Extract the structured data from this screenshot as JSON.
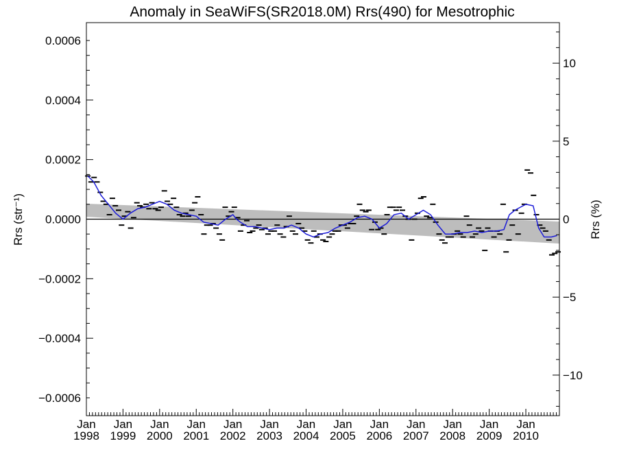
{
  "chart_data": {
    "type": "scatter",
    "title": "Anomaly in SeaWiFS(SR2018.0M) Rrs(490) for Mesotrophic",
    "ylabel_left": "Rrs (str⁻¹)",
    "ylabel_right": "Rrs (%)",
    "xlim": [
      1998.0,
      2010.9167
    ],
    "ylim": [
      -0.00066,
      0.00066
    ],
    "ylim_right_percent": [
      -12.6,
      12.6
    ],
    "grid": false,
    "y_ticks": [
      {
        "value": 0.0006,
        "label": "0.0006"
      },
      {
        "value": 0.0004,
        "label": "0.0004"
      },
      {
        "value": 0.0002,
        "label": "0.0002"
      },
      {
        "value": 0.0,
        "label": "0.0000"
      },
      {
        "value": -0.0002,
        "label": "−0.0002"
      },
      {
        "value": -0.0004,
        "label": "−0.0004"
      },
      {
        "value": -0.0006,
        "label": "−0.0006"
      }
    ],
    "y_ticks_right": [
      {
        "value": 10,
        "label": "10"
      },
      {
        "value": 5,
        "label": "5"
      },
      {
        "value": 0,
        "label": "0"
      },
      {
        "value": -5,
        "label": "−5"
      },
      {
        "value": -10,
        "label": "−10"
      }
    ],
    "x_ticks": [
      {
        "value": 1998,
        "month": "Jan",
        "year": "1998"
      },
      {
        "value": 1999,
        "month": "Jan",
        "year": "1999"
      },
      {
        "value": 2000,
        "month": "Jan",
        "year": "2000"
      },
      {
        "value": 2001,
        "month": "Jan",
        "year": "2001"
      },
      {
        "value": 2002,
        "month": "Jan",
        "year": "2002"
      },
      {
        "value": 2003,
        "month": "Jan",
        "year": "2003"
      },
      {
        "value": 2004,
        "month": "Jan",
        "year": "2004"
      },
      {
        "value": 2005,
        "month": "Jan",
        "year": "2005"
      },
      {
        "value": 2006,
        "month": "Jan",
        "year": "2006"
      },
      {
        "value": 2007,
        "month": "Jan",
        "year": "2007"
      },
      {
        "value": 2008,
        "month": "Jan",
        "year": "2008"
      },
      {
        "value": 2009,
        "month": "Jan",
        "year": "2009"
      },
      {
        "value": 2010,
        "month": "Jan",
        "year": "2010"
      }
    ],
    "monthly_anomaly": [
      {
        "x": 1998.04,
        "y": 0.000145
      },
      {
        "x": 1998.13,
        "y": 0.000125
      },
      {
        "x": 1998.21,
        "y": 0.00014
      },
      {
        "x": 1998.29,
        "y": 0.000125
      },
      {
        "x": 1998.38,
        "y": 9e-05
      },
      {
        "x": 1998.46,
        "y": 6e-05
      },
      {
        "x": 1998.54,
        "y": 5e-05
      },
      {
        "x": 1998.63,
        "y": 1.5e-05
      },
      {
        "x": 1998.71,
        "y": 7e-05
      },
      {
        "x": 1998.79,
        "y": 4.5e-05
      },
      {
        "x": 1998.88,
        "y": 3e-05
      },
      {
        "x": 1998.96,
        "y": -2e-05
      },
      {
        "x": 1999.04,
        "y": 1e-05
      },
      {
        "x": 1999.13,
        "y": 2.5e-05
      },
      {
        "x": 1999.21,
        "y": -3e-05
      },
      {
        "x": 1999.29,
        "y": 5e-06
      },
      {
        "x": 1999.38,
        "y": 5.5e-05
      },
      {
        "x": 1999.46,
        "y": 4.5e-05
      },
      {
        "x": 1999.54,
        "y": 4e-05
      },
      {
        "x": 1999.63,
        "y": 5e-05
      },
      {
        "x": 1999.71,
        "y": 3.5e-05
      },
      {
        "x": 1999.79,
        "y": 5.5e-05
      },
      {
        "x": 1999.88,
        "y": 3.5e-05
      },
      {
        "x": 1999.96,
        "y": 3e-05
      },
      {
        "x": 2000.04,
        "y": 4e-05
      },
      {
        "x": 2000.13,
        "y": 9.5e-05
      },
      {
        "x": 2000.21,
        "y": 6e-05
      },
      {
        "x": 2000.29,
        "y": 5e-05
      },
      {
        "x": 2000.38,
        "y": 7e-05
      },
      {
        "x": 2000.46,
        "y": 4e-05
      },
      {
        "x": 2000.54,
        "y": 1.5e-05
      },
      {
        "x": 2000.63,
        "y": 1e-05
      },
      {
        "x": 2000.71,
        "y": 2e-05
      },
      {
        "x": 2000.79,
        "y": 1e-05
      },
      {
        "x": 2000.88,
        "y": 3e-05
      },
      {
        "x": 2000.96,
        "y": 5.5e-05
      },
      {
        "x": 2001.04,
        "y": 7.5e-05
      },
      {
        "x": 2001.13,
        "y": 1.5e-05
      },
      {
        "x": 2001.21,
        "y": -5e-05
      },
      {
        "x": 2001.29,
        "y": -2e-05
      },
      {
        "x": 2001.38,
        "y": -2e-05
      },
      {
        "x": 2001.46,
        "y": -1.5e-05
      },
      {
        "x": 2001.54,
        "y": -3e-05
      },
      {
        "x": 2001.63,
        "y": -5e-05
      },
      {
        "x": 2001.71,
        "y": -7e-05
      },
      {
        "x": 2001.79,
        "y": 4e-05
      },
      {
        "x": 2001.88,
        "y": 1e-05
      },
      {
        "x": 2001.96,
        "y": 2.5e-05
      },
      {
        "x": 2002.04,
        "y": 4e-05
      },
      {
        "x": 2002.13,
        "y": 5e-06
      },
      {
        "x": 2002.21,
        "y": -4e-05
      },
      {
        "x": 2002.29,
        "y": -2e-05
      },
      {
        "x": 2002.38,
        "y": -5e-06
      },
      {
        "x": 2002.46,
        "y": -4.5e-05
      },
      {
        "x": 2002.54,
        "y": -4e-05
      },
      {
        "x": 2002.63,
        "y": -3e-05
      },
      {
        "x": 2002.71,
        "y": -2e-05
      },
      {
        "x": 2002.79,
        "y": -3.5e-05
      },
      {
        "x": 2002.88,
        "y": -3e-05
      },
      {
        "x": 2002.96,
        "y": -5e-05
      },
      {
        "x": 2003.04,
        "y": -4e-05
      },
      {
        "x": 2003.13,
        "y": -4e-05
      },
      {
        "x": 2003.21,
        "y": -2e-05
      },
      {
        "x": 2003.29,
        "y": -5e-05
      },
      {
        "x": 2003.38,
        "y": -6e-05
      },
      {
        "x": 2003.46,
        "y": -2.5e-05
      },
      {
        "x": 2003.54,
        "y": 1e-05
      },
      {
        "x": 2003.63,
        "y": -4e-05
      },
      {
        "x": 2003.71,
        "y": -5e-05
      },
      {
        "x": 2003.79,
        "y": -1.5e-05
      },
      {
        "x": 2003.88,
        "y": -3e-05
      },
      {
        "x": 2003.96,
        "y": -4e-05
      },
      {
        "x": 2004.04,
        "y": -7e-05
      },
      {
        "x": 2004.13,
        "y": -8e-05
      },
      {
        "x": 2004.21,
        "y": -4e-05
      },
      {
        "x": 2004.29,
        "y": -6e-05
      },
      {
        "x": 2004.38,
        "y": -5e-05
      },
      {
        "x": 2004.46,
        "y": -7e-05
      },
      {
        "x": 2004.54,
        "y": -7.5e-05
      },
      {
        "x": 2004.63,
        "y": -6e-05
      },
      {
        "x": 2004.71,
        "y": -5e-05
      },
      {
        "x": 2004.79,
        "y": -4e-05
      },
      {
        "x": 2004.88,
        "y": -4e-05
      },
      {
        "x": 2004.96,
        "y": -2e-05
      },
      {
        "x": 2005.04,
        "y": -2e-05
      },
      {
        "x": 2005.13,
        "y": -3e-05
      },
      {
        "x": 2005.21,
        "y": -1.5e-05
      },
      {
        "x": 2005.29,
        "y": -1.5e-05
      },
      {
        "x": 2005.38,
        "y": 1e-05
      },
      {
        "x": 2005.46,
        "y": 5e-05
      },
      {
        "x": 2005.54,
        "y": 3e-05
      },
      {
        "x": 2005.63,
        "y": 2.5e-05
      },
      {
        "x": 2005.71,
        "y": 3e-05
      },
      {
        "x": 2005.79,
        "y": -3.5e-05
      },
      {
        "x": 2005.88,
        "y": -1e-05
      },
      {
        "x": 2005.96,
        "y": -3.5e-05
      },
      {
        "x": 2006.04,
        "y": -3e-05
      },
      {
        "x": 2006.13,
        "y": -5e-05
      },
      {
        "x": 2006.21,
        "y": 1.5e-05
      },
      {
        "x": 2006.29,
        "y": 4e-05
      },
      {
        "x": 2006.38,
        "y": 4e-05
      },
      {
        "x": 2006.46,
        "y": 3e-05
      },
      {
        "x": 2006.54,
        "y": 4e-05
      },
      {
        "x": 2006.63,
        "y": 3e-05
      },
      {
        "x": 2006.71,
        "y": 1e-05
      },
      {
        "x": 2006.79,
        "y": 0.0
      },
      {
        "x": 2006.88,
        "y": -7e-05
      },
      {
        "x": 2006.96,
        "y": 0.0
      },
      {
        "x": 2007.04,
        "y": 2e-05
      },
      {
        "x": 2007.13,
        "y": 7e-05
      },
      {
        "x": 2007.21,
        "y": 7.5e-05
      },
      {
        "x": 2007.29,
        "y": 1e-05
      },
      {
        "x": 2007.38,
        "y": 5e-06
      },
      {
        "x": 2007.46,
        "y": 5e-05
      },
      {
        "x": 2007.54,
        "y": -1e-05
      },
      {
        "x": 2007.63,
        "y": -5e-05
      },
      {
        "x": 2007.71,
        "y": -7e-05
      },
      {
        "x": 2007.79,
        "y": -8e-05
      },
      {
        "x": 2007.88,
        "y": -6e-05
      },
      {
        "x": 2007.96,
        "y": -6e-05
      },
      {
        "x": 2008.04,
        "y": -5e-05
      },
      {
        "x": 2008.13,
        "y": -4e-05
      },
      {
        "x": 2008.21,
        "y": -5e-05
      },
      {
        "x": 2008.29,
        "y": -6e-05
      },
      {
        "x": 2008.38,
        "y": 1e-05
      },
      {
        "x": 2008.46,
        "y": -2e-05
      },
      {
        "x": 2008.54,
        "y": -6e-05
      },
      {
        "x": 2008.63,
        "y": -5e-05
      },
      {
        "x": 2008.71,
        "y": -3e-05
      },
      {
        "x": 2008.79,
        "y": -4e-05
      },
      {
        "x": 2008.88,
        "y": -0.000105
      },
      {
        "x": 2008.96,
        "y": -3e-05
      },
      {
        "x": 2009.04,
        "y": -4e-05
      },
      {
        "x": 2009.13,
        "y": -6e-05
      },
      {
        "x": 2009.21,
        "y": -4e-05
      },
      {
        "x": 2009.29,
        "y": -5e-05
      },
      {
        "x": 2009.38,
        "y": 5e-05
      },
      {
        "x": 2009.46,
        "y": -0.00011
      },
      {
        "x": 2009.54,
        "y": -7e-05
      },
      {
        "x": 2009.63,
        "y": -2e-05
      },
      {
        "x": 2009.71,
        "y": 3e-05
      },
      {
        "x": 2009.79,
        "y": -5e-05
      },
      {
        "x": 2009.88,
        "y": 2e-05
      },
      {
        "x": 2009.96,
        "y": 5e-05
      },
      {
        "x": 2010.04,
        "y": 0.000165
      },
      {
        "x": 2010.13,
        "y": 0.000155
      },
      {
        "x": 2010.21,
        "y": 8e-05
      },
      {
        "x": 2010.29,
        "y": 1.5e-05
      },
      {
        "x": 2010.38,
        "y": -2e-05
      },
      {
        "x": 2010.46,
        "y": -3e-05
      },
      {
        "x": 2010.54,
        "y": -4e-05
      },
      {
        "x": 2010.63,
        "y": -7e-05
      },
      {
        "x": 2010.71,
        "y": -0.00012
      },
      {
        "x": 2010.79,
        "y": -0.000115
      },
      {
        "x": 2010.88,
        "y": -0.00011
      }
    ],
    "running_mean": [
      {
        "x": 1998.04,
        "y": 0.000145
      },
      {
        "x": 1998.2,
        "y": 0.000125
      },
      {
        "x": 1998.4,
        "y": 8e-05
      },
      {
        "x": 1998.6,
        "y": 5e-05
      },
      {
        "x": 1998.8,
        "y": 2e-05
      },
      {
        "x": 1999.0,
        "y": 0.0
      },
      {
        "x": 1999.2,
        "y": 2e-05
      },
      {
        "x": 1999.4,
        "y": 3.5e-05
      },
      {
        "x": 1999.6,
        "y": 4e-05
      },
      {
        "x": 1999.8,
        "y": 5e-05
      },
      {
        "x": 2000.0,
        "y": 6e-05
      },
      {
        "x": 2000.2,
        "y": 5e-05
      },
      {
        "x": 2000.4,
        "y": 3e-05
      },
      {
        "x": 2000.6,
        "y": 2e-05
      },
      {
        "x": 2000.8,
        "y": 1.5e-05
      },
      {
        "x": 2001.0,
        "y": 1e-05
      },
      {
        "x": 2001.2,
        "y": -1e-05
      },
      {
        "x": 2001.4,
        "y": -1.5e-05
      },
      {
        "x": 2001.6,
        "y": -2e-05
      },
      {
        "x": 2001.8,
        "y": 0.0
      },
      {
        "x": 2002.0,
        "y": 1.5e-05
      },
      {
        "x": 2002.1,
        "y": 0.0
      },
      {
        "x": 2002.2,
        "y": -1e-05
      },
      {
        "x": 2002.4,
        "y": -2.5e-05
      },
      {
        "x": 2002.6,
        "y": -2.5e-05
      },
      {
        "x": 2002.8,
        "y": -3e-05
      },
      {
        "x": 2003.0,
        "y": -3.5e-05
      },
      {
        "x": 2003.2,
        "y": -3e-05
      },
      {
        "x": 2003.4,
        "y": -3e-05
      },
      {
        "x": 2003.6,
        "y": -2e-05
      },
      {
        "x": 2003.8,
        "y": -3e-05
      },
      {
        "x": 2004.0,
        "y": -5e-05
      },
      {
        "x": 2004.2,
        "y": -6e-05
      },
      {
        "x": 2004.4,
        "y": -5e-05
      },
      {
        "x": 2004.6,
        "y": -4.5e-05
      },
      {
        "x": 2004.8,
        "y": -3e-05
      },
      {
        "x": 2005.0,
        "y": -2e-05
      },
      {
        "x": 2005.2,
        "y": -1e-05
      },
      {
        "x": 2005.4,
        "y": 5e-06
      },
      {
        "x": 2005.6,
        "y": 1e-05
      },
      {
        "x": 2005.8,
        "y": 0.0
      },
      {
        "x": 2006.0,
        "y": -3e-05
      },
      {
        "x": 2006.2,
        "y": -1.5e-05
      },
      {
        "x": 2006.4,
        "y": 1.5e-05
      },
      {
        "x": 2006.6,
        "y": 2e-05
      },
      {
        "x": 2006.8,
        "y": 0.0
      },
      {
        "x": 2007.0,
        "y": 1.5e-05
      },
      {
        "x": 2007.2,
        "y": 3e-05
      },
      {
        "x": 2007.4,
        "y": 1.5e-05
      },
      {
        "x": 2007.6,
        "y": -2e-05
      },
      {
        "x": 2007.8,
        "y": -5e-05
      },
      {
        "x": 2008.0,
        "y": -5e-05
      },
      {
        "x": 2008.2,
        "y": -4.5e-05
      },
      {
        "x": 2008.4,
        "y": -4.5e-05
      },
      {
        "x": 2008.6,
        "y": -4e-05
      },
      {
        "x": 2008.8,
        "y": -4.5e-05
      },
      {
        "x": 2009.0,
        "y": -4e-05
      },
      {
        "x": 2009.2,
        "y": -4e-05
      },
      {
        "x": 2009.4,
        "y": -3.5e-05
      },
      {
        "x": 2009.55,
        "y": 1.5e-05
      },
      {
        "x": 2009.7,
        "y": 3e-05
      },
      {
        "x": 2009.85,
        "y": 4e-05
      },
      {
        "x": 2010.0,
        "y": 5e-05
      },
      {
        "x": 2010.2,
        "y": 4.5e-05
      },
      {
        "x": 2010.35,
        "y": -3e-05
      },
      {
        "x": 2010.5,
        "y": -6e-05
      },
      {
        "x": 2010.7,
        "y": -6e-05
      },
      {
        "x": 2010.85,
        "y": -5.5e-05
      }
    ],
    "trend_band": {
      "x": [
        1998.0,
        2010.9167
      ],
      "upper": [
        5.2e-05,
        -8e-06
      ],
      "lower": [
        8e-06,
        -8.2e-05
      ]
    },
    "zero_line": 0,
    "colors": {
      "running_mean": "#1a1ad8",
      "trend_band": "#bdbdbd",
      "markers": "#000000",
      "axes": "#000000"
    }
  }
}
